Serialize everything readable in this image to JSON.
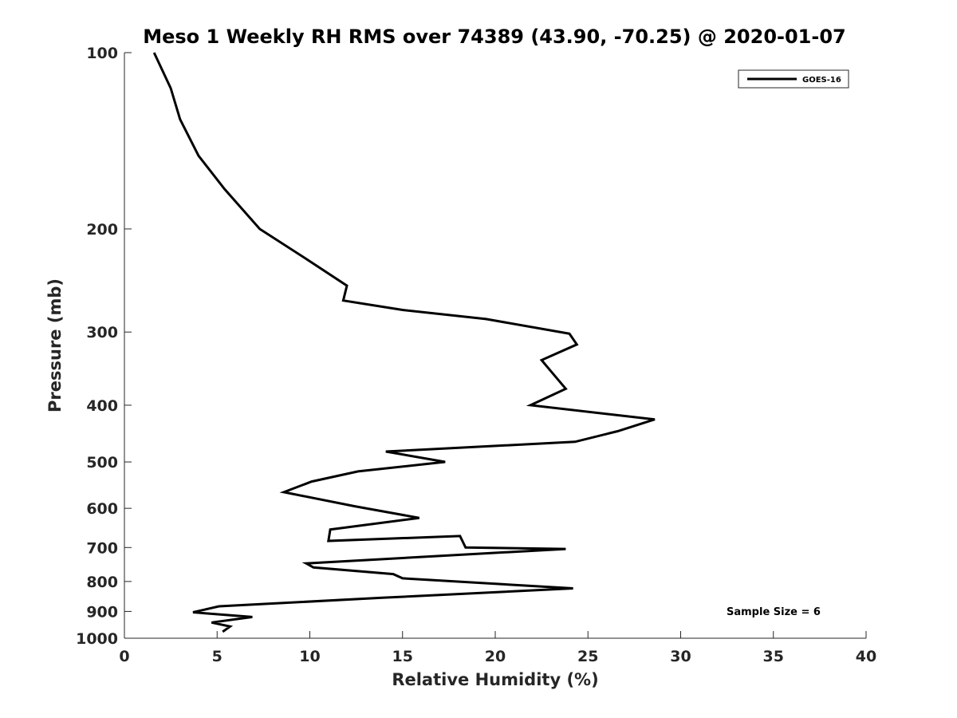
{
  "chart_data": {
    "type": "line",
    "title": "Meso 1 Weekly RH RMS over 74389 (43.90, -70.25) @ 2020-01-07",
    "xlabel": "Relative Humidity (%)",
    "ylabel": "Pressure (mb)",
    "xlim": [
      0,
      40
    ],
    "ylim": [
      100,
      1000
    ],
    "y_scale": "log",
    "y_reversed": true,
    "grid": false,
    "legend_position": "top-right",
    "x_ticks": [
      "0",
      "5",
      "10",
      "15",
      "20",
      "25",
      "30",
      "35",
      "40"
    ],
    "y_ticks": [
      "100",
      "200",
      "300",
      "400",
      "500",
      "600",
      "700",
      "800",
      "900",
      "1000"
    ],
    "annotation": "Sample Size = 6",
    "series": [
      {
        "name": "GOES-16",
        "color": "#000000",
        "x": [
          1.6,
          2.5,
          3.0,
          4.0,
          5.4,
          7.3,
          9.8,
          12.0,
          11.8,
          15.0,
          19.5,
          24.0,
          24.4,
          22.5,
          23.0,
          23.8,
          21.9,
          28.6,
          26.6,
          24.3,
          14.1,
          17.3,
          12.6,
          10.1,
          8.6,
          12.4,
          15.9,
          11.1,
          11.0,
          18.1,
          18.4,
          23.8,
          9.8,
          10.2,
          14.5,
          15.0,
          24.2,
          13.9,
          5.1,
          3.7,
          6.9,
          4.7,
          5.7,
          5.3
        ],
        "y": [
          100,
          115,
          130,
          150,
          171,
          200,
          225,
          250,
          265,
          275,
          285,
          302,
          315,
          335,
          350,
          375,
          400,
          423,
          443,
          462,
          480,
          500,
          519,
          540,
          563,
          595,
          623,
          652,
          682,
          669,
          700,
          704,
          745,
          757,
          777,
          790,
          822,
          853,
          882,
          903,
          920,
          940,
          955,
          975
        ]
      }
    ]
  }
}
